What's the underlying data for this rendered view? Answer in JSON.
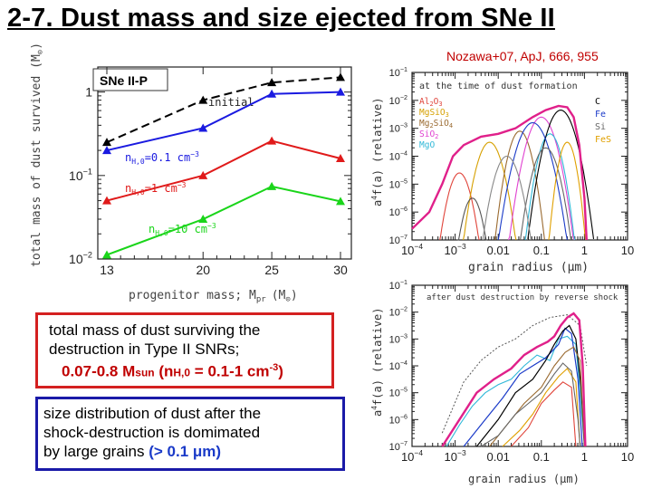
{
  "slide_title": "2-7. Dust mass and size ejected from SNe II",
  "citation": "Nozawa+07, ApJ, 666, 955",
  "left_chart": {
    "type": "line",
    "panel_label": "SNe II-P",
    "x": [
      13,
      20,
      25,
      30
    ],
    "xlabel": "progenitor mass; M",
    "xlabel_sub": "pr",
    "xlabel_unit": "(M",
    "xlabel_unit_close": ")",
    "ylabel": "total mass of dust survived (M",
    "ylabel_close": ")",
    "sun_symbol": "⊙",
    "x_ticks": [
      "13",
      "20",
      "25",
      "30"
    ],
    "y_ticks": [
      {
        "base": "1",
        "exp": ""
      },
      {
        "base": "10",
        "exp": "−1"
      },
      {
        "base": "10",
        "exp": "−2"
      }
    ],
    "ylim_log10": [
      -2,
      0.3
    ],
    "series": [
      {
        "name": "initial",
        "color": "#000000",
        "dashed": true,
        "values": [
          0.25,
          0.8,
          1.3,
          1.5
        ],
        "label_text": "initial"
      },
      {
        "name": "nH,0=0.1 cm-3",
        "color": "#1a1ae0",
        "dashed": false,
        "values": [
          0.2,
          0.37,
          0.95,
          1.0
        ],
        "label_pre": "n",
        "label_sub": "H,0",
        "label_post": "=0.1  cm",
        "label_exp": "−3"
      },
      {
        "name": "nH,0=1 cm-3",
        "color": "#e01a1a",
        "dashed": false,
        "values": [
          0.05,
          0.1,
          0.26,
          0.16
        ],
        "label_pre": "n",
        "label_sub": "H,0",
        "label_post": "=1  cm",
        "label_exp": "−3"
      },
      {
        "name": "nH,0=10 cm-3",
        "color": "#1ad51a",
        "dashed": false,
        "values": [
          0.0112,
          0.03,
          0.074,
          0.049
        ],
        "label_pre": "n",
        "label_sub": "H,0",
        "label_post": "=10  cm",
        "label_exp": "−3"
      }
    ]
  },
  "box1": {
    "line1": "total mass of dust surviving the",
    "line2": "destruction in Type II SNRs;",
    "hl_a": "0.07-0.8 M",
    "hl_sun": "sun",
    "hl_b": " (n",
    "hl_h": "H,0",
    "hl_c": " = 0.1-1 cm",
    "hl_exp": "-3",
    "hl_d": ")"
  },
  "box2": {
    "line1": "size distribution of dust after the",
    "line2": "shock-destruction is domimated",
    "line3_pre": "by large grains ",
    "line3_hl": "(> 0.1 μm)"
  },
  "right_top_chart": {
    "type": "line",
    "annotation": "at the time of dust formation",
    "xlabel": "grain radius (μm)",
    "ylabel_pre": "a",
    "ylabel_exp": "4",
    "ylabel_post": "f(a)  (relative)",
    "x_ticks": [
      {
        "base": "10",
        "exp": "−4"
      },
      {
        "base": "10",
        "exp": "−3"
      },
      {
        "base": "0.01",
        "exp": ""
      },
      {
        "base": "0.1",
        "exp": ""
      },
      {
        "base": "1",
        "exp": ""
      },
      {
        "base": "10",
        "exp": ""
      }
    ],
    "y_ticks": [
      {
        "base": "10",
        "exp": "−1"
      },
      {
        "base": "10",
        "exp": "−2"
      },
      {
        "base": "10",
        "exp": "−3"
      },
      {
        "base": "10",
        "exp": "−4"
      },
      {
        "base": "10",
        "exp": "−5"
      },
      {
        "base": "10",
        "exp": "−6"
      },
      {
        "base": "10",
        "exp": "−7"
      }
    ],
    "legend_left": [
      {
        "pre": "Al",
        "s1": "2",
        "mid": "O",
        "s2": "3",
        "post": "",
        "color": "#e0443a"
      },
      {
        "pre": "MgSiO",
        "s1": "3",
        "mid": "",
        "s2": "",
        "post": "",
        "color": "#d6a000"
      },
      {
        "pre": "Mg",
        "s1": "2",
        "mid": "SiO",
        "s2": "4",
        "post": "",
        "color": "#9a6a30"
      },
      {
        "pre": "SiO",
        "s1": "2",
        "mid": "",
        "s2": "",
        "post": "",
        "color": "#e040d0"
      },
      {
        "pre": "MgO",
        "s1": "",
        "mid": "",
        "s2": "",
        "post": "",
        "color": "#30b8d8"
      }
    ],
    "legend_right": [
      {
        "text": "C",
        "color": "#000000"
      },
      {
        "text": "Fe",
        "color": "#1a3ac8"
      },
      {
        "text": "Si",
        "color": "#666666"
      },
      {
        "text": "FeS",
        "color": "#e0a000"
      }
    ]
  },
  "right_bottom_chart": {
    "type": "line",
    "annotation": "after dust destruction by reverse shock",
    "xlabel": "grain radius (μm)",
    "ylabel_pre": "a",
    "ylabel_exp": "4",
    "ylabel_post": "f(a)  (relative)",
    "x_ticks": [
      {
        "base": "10",
        "exp": "−4"
      },
      {
        "base": "10",
        "exp": "−3"
      },
      {
        "base": "0.01",
        "exp": ""
      },
      {
        "base": "0.1",
        "exp": ""
      },
      {
        "base": "1",
        "exp": ""
      },
      {
        "base": "10",
        "exp": ""
      }
    ],
    "y_ticks": [
      {
        "base": "10",
        "exp": "−1"
      },
      {
        "base": "10",
        "exp": "−2"
      },
      {
        "base": "10",
        "exp": "−3"
      },
      {
        "base": "10",
        "exp": "−4"
      },
      {
        "base": "10",
        "exp": "−5"
      },
      {
        "base": "10",
        "exp": "−6"
      },
      {
        "base": "10",
        "exp": "−7"
      }
    ]
  },
  "chart_data": [
    {
      "type": "line",
      "title": "SNe II-P",
      "xlabel": "progenitor mass; Mpr (M⊙)",
      "ylabel": "total mass of dust survived (M⊙)",
      "x": [
        13,
        20,
        25,
        30
      ],
      "ylim": [
        0.01,
        2
      ],
      "yscale": "log",
      "series": [
        {
          "name": "initial",
          "values": [
            0.25,
            0.8,
            1.3,
            1.5
          ]
        },
        {
          "name": "nH,0=0.1 cm-3",
          "values": [
            0.2,
            0.37,
            0.95,
            1.0
          ]
        },
        {
          "name": "nH,0=1 cm-3",
          "values": [
            0.05,
            0.1,
            0.26,
            0.16
          ]
        },
        {
          "name": "nH,0=10 cm-3",
          "values": [
            0.0112,
            0.03,
            0.074,
            0.049
          ]
        }
      ]
    },
    {
      "type": "line",
      "title": "at the time of dust formation",
      "xlabel": "grain radius (μm)",
      "ylabel": "a4f(a) (relative)",
      "xlim": [
        0.0001,
        10
      ],
      "ylim": [
        1e-07,
        0.1
      ],
      "xscale": "log",
      "yscale": "log",
      "series": [
        {
          "name": "total",
          "x": [
            0.0001,
            0.0003,
            0.001,
            0.005,
            0.02,
            0.1,
            0.3,
            0.6,
            1.0
          ],
          "values": [
            3e-07,
            2e-06,
            0.0002,
            0.0008,
            0.001,
            0.004,
            0.006,
            0.0001,
            1e-07
          ]
        }
      ]
    },
    {
      "type": "line",
      "title": "after dust destruction by reverse shock",
      "xlabel": "grain radius (μm)",
      "ylabel": "a4f(a) (relative)",
      "xlim": [
        0.0001,
        10
      ],
      "ylim": [
        1e-07,
        0.1
      ],
      "xscale": "log",
      "yscale": "log",
      "series": [
        {
          "name": "total",
          "x": [
            0.0005,
            0.001,
            0.005,
            0.02,
            0.1,
            0.3,
            0.5,
            1.0
          ],
          "values": [
            1e-07,
            1e-06,
            1e-05,
            6e-05,
            0.0002,
            0.001,
            0.008,
            1e-07
          ]
        }
      ]
    }
  ]
}
